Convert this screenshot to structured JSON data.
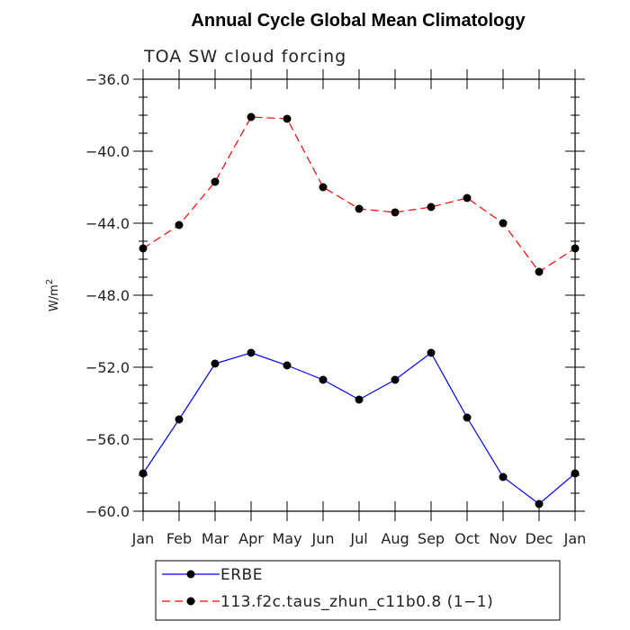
{
  "chart_data": {
    "type": "line",
    "title": "Annual Cycle Global Mean Climatology",
    "subtitle": "TOA SW cloud forcing",
    "xlabel": "",
    "ylabel": "W/m",
    "ylabel_superscript": "2",
    "categories": [
      "Jan",
      "Feb",
      "Mar",
      "Apr",
      "May",
      "Jun",
      "Jul",
      "Aug",
      "Sep",
      "Oct",
      "Nov",
      "Dec",
      "Jan"
    ],
    "ylim": [
      -60.0,
      -36.0
    ],
    "yticks": [
      -60.0,
      -56.0,
      -52.0,
      -48.0,
      -44.0,
      -40.0,
      -36.0
    ],
    "ytick_labels": [
      "−60.0",
      "−56.0",
      "−52.0",
      "−48.0",
      "−44.0",
      "−40.0",
      "−36.0"
    ],
    "grid": false,
    "legend_position": "bottom",
    "series": [
      {
        "name": "ERBE",
        "color": "#0000ff",
        "dash": "solid",
        "values": [
          -57.9,
          -54.9,
          -51.8,
          -51.2,
          -51.9,
          -52.7,
          -53.8,
          -52.7,
          -51.2,
          -54.8,
          -58.1,
          -59.6,
          -57.9
        ]
      },
      {
        "name": "113.f2c.taus_zhun_c11b0.8 (1−1)",
        "color": "#ff0000",
        "dash": "dashed",
        "values": [
          -45.4,
          -44.1,
          -41.7,
          -38.1,
          -38.2,
          -42.0,
          -43.2,
          -43.4,
          -43.1,
          -42.6,
          -44.0,
          -46.7,
          -45.4
        ]
      }
    ]
  }
}
